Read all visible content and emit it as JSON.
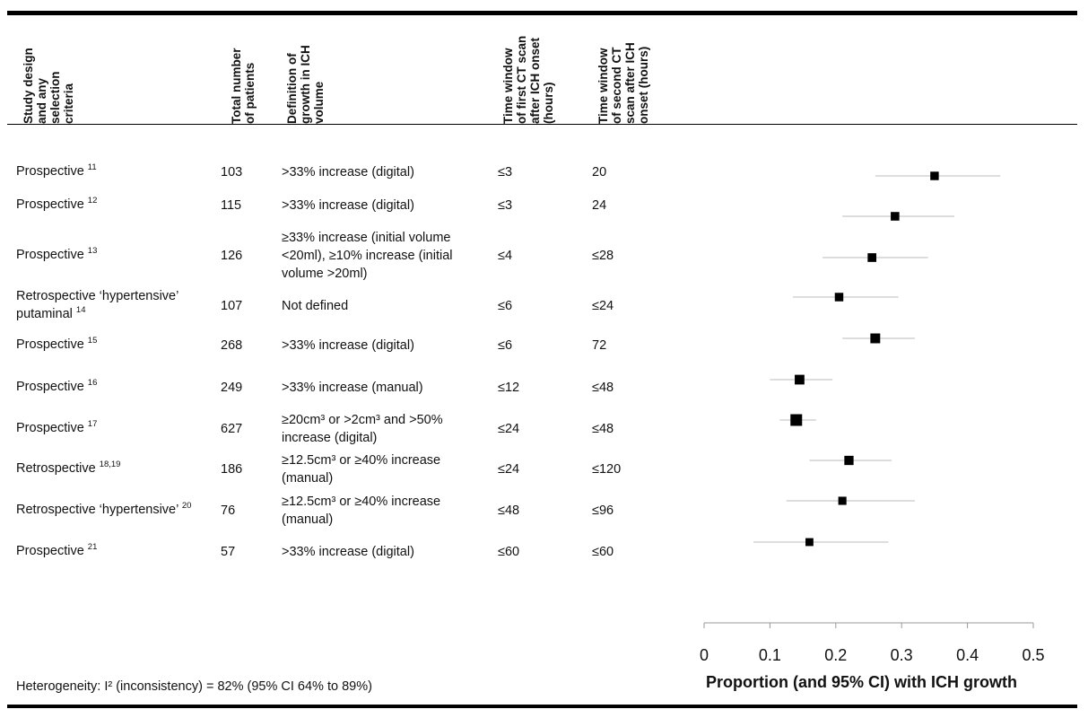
{
  "headers": {
    "design": "Study design\nand any\nselection\ncriteria",
    "patients": "Total number\nof patients",
    "definition": "Definition of\ngrowth in ICH\nvolume",
    "first_scan": "Time window\nof first CT scan\nafter ICH onset\n(hours)",
    "second_scan": "Time window\nof second CT\nscan after ICH\nonset (hours)"
  },
  "rows": [
    {
      "design": "Prospective",
      "ref": "11",
      "patients": "103",
      "definition": ">33% increase (digital)",
      "first": "≤3",
      "second": "20"
    },
    {
      "design": "Prospective",
      "ref": "12",
      "patients": "115",
      "definition": ">33% increase (digital)",
      "first": "≤3",
      "second": "24"
    },
    {
      "design": "Prospective",
      "ref": "13",
      "patients": "126",
      "definition": "≥33% increase (initial volume <20ml), ≥10% increase (initial volume >20ml)",
      "first": "≤4",
      "second": "≤28"
    },
    {
      "design": "Retrospective ‘hypertensive’ putaminal",
      "ref": "14",
      "patients": "107",
      "definition": "Not defined",
      "first": "≤6",
      "second": "≤24"
    },
    {
      "design": "Prospective",
      "ref": "15",
      "patients": "268",
      "definition": ">33% increase (digital)",
      "first": "≤6",
      "second": "72"
    },
    {
      "design": "Prospective",
      "ref": "16",
      "patients": "249",
      "definition": ">33% increase (manual)",
      "first": "≤12",
      "second": "≤48"
    },
    {
      "design": "Prospective",
      "ref": "17",
      "patients": "627",
      "definition": "≥20cm³ or >2cm³ and >50% increase (digital)",
      "first": "≤24",
      "second": "≤48"
    },
    {
      "design": "Retrospective",
      "ref": "18,19",
      "patients": "186",
      "definition": "≥12.5cm³ or ≥40% increase (manual)",
      "first": "≤24",
      "second": "≤120"
    },
    {
      "design": "Retrospective ‘hypertensive’",
      "ref": "20",
      "patients": "76",
      "definition": "≥12.5cm³ or ≥40% increase (manual)",
      "first": "≤48",
      "second": "≤96"
    },
    {
      "design": "Prospective",
      "ref": "21",
      "patients": "57",
      "definition": ">33% increase (digital)",
      "first": "≤60",
      "second": "≤60"
    }
  ],
  "footer": "Heterogeneity: I² (inconsistency) = 82% (95% CI 64% to 89%)",
  "chart_data": {
    "type": "scatter",
    "subtype": "forest",
    "xlabel": "Proportion (and 95% CI) with ICH growth",
    "xlim": [
      0,
      0.5
    ],
    "xticks": [
      0,
      0.1,
      0.2,
      0.3,
      0.4,
      0.5
    ],
    "tick_labels": [
      "0",
      "0.1",
      "0.2",
      "0.3",
      "0.4",
      "0.5"
    ],
    "grid": false,
    "marker_color": "#000000",
    "ci_color": "#bbbbbb",
    "points": [
      {
        "study": "11",
        "estimate": 0.35,
        "lower": 0.26,
        "upper": 0.45,
        "weight": 103
      },
      {
        "study": "12",
        "estimate": 0.29,
        "lower": 0.21,
        "upper": 0.38,
        "weight": 115
      },
      {
        "study": "13",
        "estimate": 0.255,
        "lower": 0.18,
        "upper": 0.34,
        "weight": 126
      },
      {
        "study": "14",
        "estimate": 0.205,
        "lower": 0.135,
        "upper": 0.295,
        "weight": 107
      },
      {
        "study": "15",
        "estimate": 0.26,
        "lower": 0.21,
        "upper": 0.32,
        "weight": 268
      },
      {
        "study": "16",
        "estimate": 0.145,
        "lower": 0.1,
        "upper": 0.195,
        "weight": 249
      },
      {
        "study": "17",
        "estimate": 0.14,
        "lower": 0.115,
        "upper": 0.17,
        "weight": 627
      },
      {
        "study": "18,19",
        "estimate": 0.22,
        "lower": 0.16,
        "upper": 0.285,
        "weight": 186
      },
      {
        "study": "20",
        "estimate": 0.21,
        "lower": 0.125,
        "upper": 0.32,
        "weight": 76
      },
      {
        "study": "21",
        "estimate": 0.16,
        "lower": 0.075,
        "upper": 0.28,
        "weight": 57
      }
    ]
  }
}
